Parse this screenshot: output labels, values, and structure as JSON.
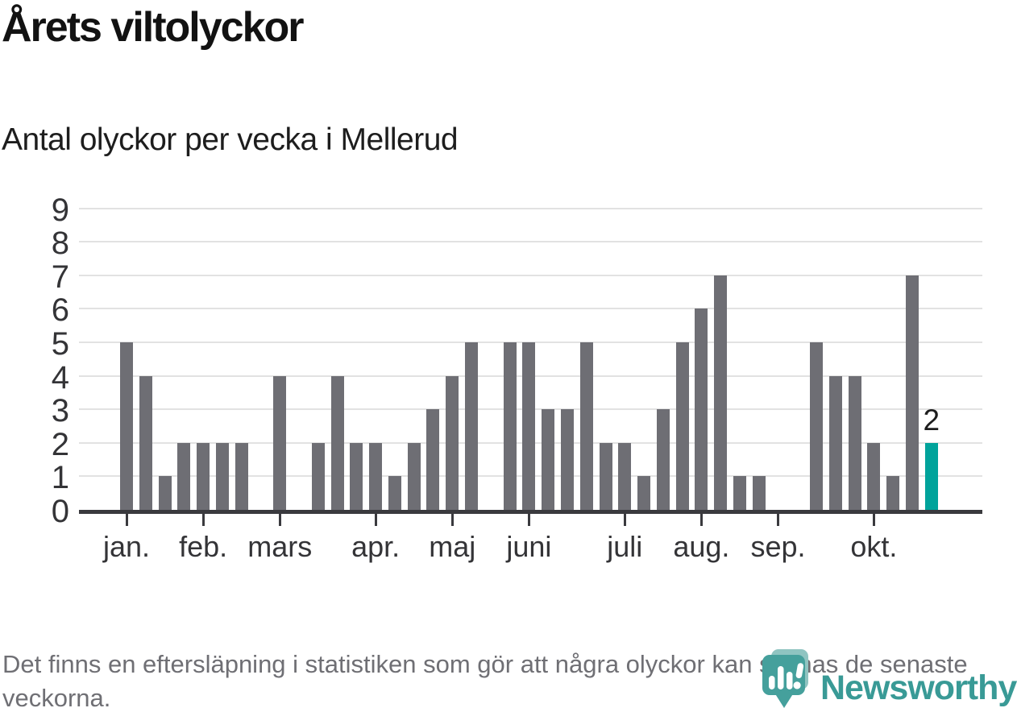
{
  "header": {
    "title": "Årets viltolyckor",
    "subtitle": "Antal olyckor per vecka i Mellerud"
  },
  "footer": {
    "note": "Det finns en eftersläpning i statistiken som gör att några olyckor kan saknas de senaste veckorna.",
    "brand": "Newsworthy"
  },
  "colors": {
    "bar": "#6e6e74",
    "highlight": "#00a39b",
    "axis": "#3a3a3e",
    "grid": "#e2e2e2",
    "tick": "#3a3a3e",
    "brand_teal": "#399a96"
  },
  "chart_data": {
    "type": "bar",
    "title": "Årets viltolyckor",
    "subtitle": "Antal olyckor per vecka i Mellerud",
    "xlabel": "",
    "ylabel": "",
    "x_unit": "vecka",
    "n_weeks": 43,
    "values": [
      5,
      4,
      1,
      2,
      2,
      2,
      2,
      0,
      4,
      0,
      2,
      4,
      2,
      2,
      1,
      2,
      3,
      4,
      5,
      0,
      5,
      5,
      3,
      3,
      5,
      2,
      2,
      1,
      3,
      5,
      6,
      7,
      1,
      1,
      0,
      0,
      5,
      4,
      4,
      2,
      1,
      7,
      2
    ],
    "ylim": [
      0,
      9
    ],
    "yticks": [
      0,
      1,
      2,
      3,
      4,
      5,
      6,
      7,
      8,
      9
    ],
    "grid": true,
    "legend": false,
    "month_ticks": [
      {
        "label": "jan.",
        "slot": 1
      },
      {
        "label": "feb.",
        "slot": 5
      },
      {
        "label": "mars",
        "slot": 9
      },
      {
        "label": "apr.",
        "slot": 14
      },
      {
        "label": "maj",
        "slot": 18
      },
      {
        "label": "juni",
        "slot": 22
      },
      {
        "label": "juli",
        "slot": 27
      },
      {
        "label": "aug.",
        "slot": 31
      },
      {
        "label": "sep.",
        "slot": 35
      },
      {
        "label": "okt.",
        "slot": 40
      }
    ],
    "highlight": {
      "index": 42,
      "value_label": "2"
    }
  }
}
